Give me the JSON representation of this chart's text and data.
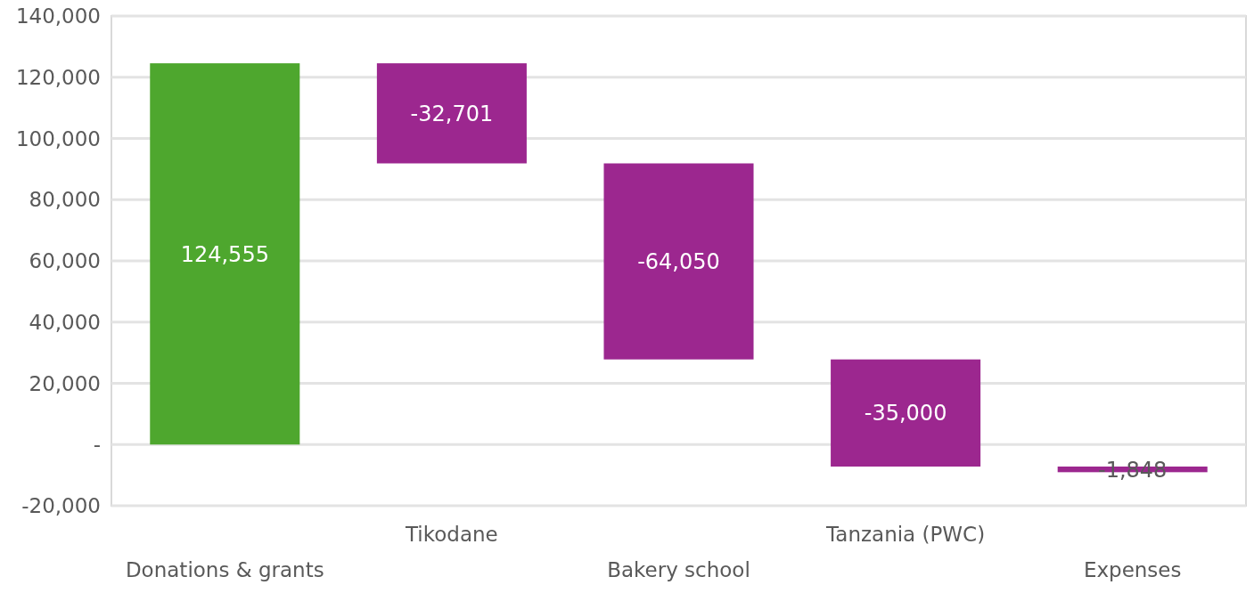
{
  "chart_data": {
    "type": "bar",
    "categories": [
      "Donations & grants",
      "Tikodane",
      "Bakery school",
      "Tanzania (PWC)",
      "Expenses"
    ],
    "values": [
      124555,
      -32701,
      -64050,
      -35000,
      -1848
    ],
    "base": [
      0,
      124555,
      91854,
      27804,
      -7196
    ],
    "colors": [
      "#4ea72e",
      "#9c278f",
      "#9c278f",
      "#9c278f",
      "#9c278f"
    ],
    "ylim": [
      -20000,
      140000
    ],
    "yticks": [
      {
        "value": -20000,
        "label": "-20,000"
      },
      {
        "value": 0,
        "label": "-"
      },
      {
        "value": 20000,
        "label": "20,000"
      },
      {
        "value": 40000,
        "label": "40,000"
      },
      {
        "value": 60000,
        "label": "60,000"
      },
      {
        "value": 80000,
        "label": "80,000"
      },
      {
        "value": 100000,
        "label": "100,000"
      },
      {
        "value": 120000,
        "label": "120,000"
      },
      {
        "value": 140000,
        "label": "140,000"
      }
    ],
    "grid": "y",
    "value_labels": [
      "124,555",
      "-32,701",
      "-64,050",
      "-35,000",
      "-1,848"
    ]
  }
}
